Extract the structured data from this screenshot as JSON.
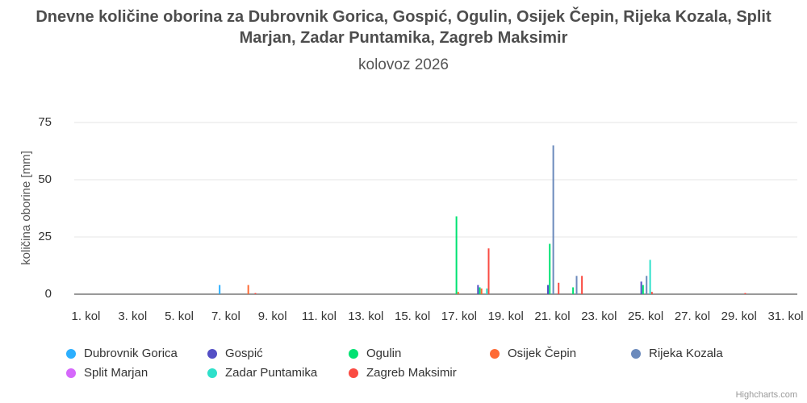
{
  "chart_data": {
    "type": "bar",
    "title": "Dnevne količine oborina za Dubrovnik Gorica, Gospić, Ogulin, Osijek Čepin, Rijeka Kozala, Split Marjan, Zadar Puntamika, Zagreb Maksimir",
    "subtitle": "kolovoz 2026",
    "y_label": "količina oborine [mm]",
    "credit": "Highcharts.com",
    "categories": [
      "1. kol",
      null,
      "3. kol",
      null,
      "5. kol",
      null,
      "7. kol",
      null,
      "9. kol",
      null,
      "11. kol",
      null,
      "13. kol",
      null,
      "15. kol",
      null,
      "17. kol",
      null,
      "19. kol",
      null,
      "21. kol",
      null,
      "23. kol",
      null,
      "25. kol",
      null,
      "27. kol",
      null,
      "29. kol",
      null,
      "31. kol"
    ],
    "series": [
      {
        "name": "Dubrovnik Gorica",
        "color": "#2caffe",
        "values": [
          0,
          0,
          0,
          0,
          0,
          0,
          4,
          0,
          0,
          0,
          0,
          0,
          0,
          0,
          0,
          0,
          0,
          0,
          0,
          0,
          0,
          0,
          0,
          0,
          0,
          0,
          0,
          0,
          0,
          0,
          0
        ]
      },
      {
        "name": "Gospić",
        "color": "#544fc5",
        "values": [
          0,
          0,
          0,
          0,
          0,
          0,
          0,
          0,
          0,
          0,
          0,
          0,
          0,
          0,
          0,
          0,
          0,
          4,
          0,
          0,
          4,
          0,
          0,
          0,
          5.5,
          0,
          0,
          0,
          0,
          0,
          0
        ]
      },
      {
        "name": "Ogulin",
        "color": "#00e272",
        "values": [
          0,
          0,
          0,
          0,
          0,
          0,
          0,
          0,
          0,
          0,
          0,
          0,
          0,
          0,
          0,
          0,
          34,
          3,
          0,
          0,
          22,
          3,
          0,
          0,
          4,
          0,
          0,
          0,
          0,
          0,
          0
        ]
      },
      {
        "name": "Osijek Čepin",
        "color": "#fe6a35",
        "values": [
          0,
          0,
          0,
          0,
          0,
          0,
          0,
          4,
          0,
          0,
          0,
          0,
          0,
          0,
          0,
          0,
          1,
          2.5,
          0,
          0,
          0,
          0,
          0,
          0,
          0,
          0,
          0,
          0,
          0,
          0,
          0
        ]
      },
      {
        "name": "Rijeka Kozala",
        "color": "#6b8abc",
        "values": [
          0,
          0,
          0,
          0,
          0,
          0,
          0,
          0,
          0,
          0,
          0,
          0,
          0,
          0,
          0,
          0,
          0,
          0,
          0,
          0,
          65,
          8,
          0,
          0,
          8,
          0,
          0,
          0,
          0,
          0,
          0
        ]
      },
      {
        "name": "Split Marjan",
        "color": "#d568fb",
        "values": [
          0,
          0,
          0,
          0,
          0,
          0,
          0,
          0,
          0,
          0,
          0,
          0,
          0,
          0,
          0,
          0,
          0,
          0,
          0,
          0,
          0,
          0,
          0,
          0,
          0,
          0,
          0,
          0,
          0,
          0,
          0
        ]
      },
      {
        "name": "Zadar Puntamika",
        "color": "#2ee0ca",
        "values": [
          0,
          0,
          0,
          0,
          0,
          0,
          0,
          0,
          0,
          0,
          0,
          0,
          0,
          0,
          0,
          0,
          0,
          2.5,
          0,
          0,
          0,
          0,
          0,
          0,
          15,
          0,
          0,
          0,
          0,
          0,
          0
        ]
      },
      {
        "name": "Zagreb Maksimir",
        "color": "#fa4b42",
        "values": [
          0,
          0,
          0,
          0,
          0,
          0,
          0,
          0.5,
          0,
          0,
          0,
          0,
          0,
          0,
          0,
          0,
          0,
          20,
          0,
          0,
          5,
          8,
          0,
          0,
          1,
          0,
          0,
          0,
          0.5,
          0,
          0
        ]
      }
    ],
    "ylim": [
      0,
      75
    ],
    "yticks": [
      0,
      25,
      50,
      75
    ],
    "grid": true
  }
}
